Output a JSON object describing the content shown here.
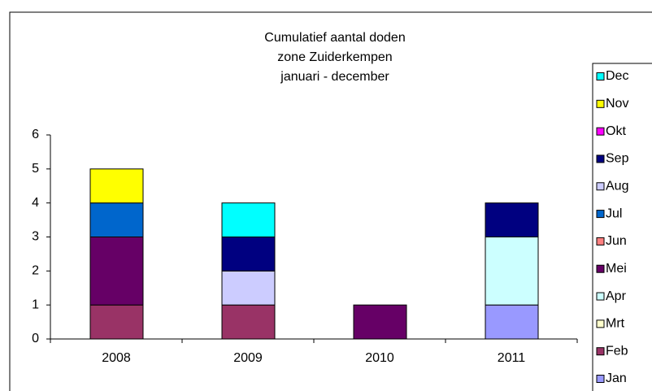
{
  "chart_data": {
    "type": "bar",
    "stacked": true,
    "title": [
      "Cumulatief aantal doden",
      "zone Zuiderkempen",
      "januari - december"
    ],
    "categories": [
      "2008",
      "2009",
      "2010",
      "2011"
    ],
    "series": [
      {
        "name": "Jan",
        "color": "#9999ff",
        "values": [
          0,
          0,
          0,
          1
        ]
      },
      {
        "name": "Feb",
        "color": "#993366",
        "values": [
          1,
          1,
          0,
          0
        ]
      },
      {
        "name": "Mrt",
        "color": "#ffffcc",
        "values": [
          0,
          0,
          0,
          0
        ]
      },
      {
        "name": "Apr",
        "color": "#ccffff",
        "values": [
          0,
          0,
          0,
          2
        ]
      },
      {
        "name": "Mei",
        "color": "#660066",
        "values": [
          2,
          0,
          1,
          0
        ]
      },
      {
        "name": "Jun",
        "color": "#ff8080",
        "values": [
          0,
          0,
          0,
          0
        ]
      },
      {
        "name": "Jul",
        "color": "#0066cc",
        "values": [
          1,
          0,
          0,
          0
        ]
      },
      {
        "name": "Aug",
        "color": "#ccccff",
        "values": [
          0,
          1,
          0,
          0
        ]
      },
      {
        "name": "Sep",
        "color": "#000080",
        "values": [
          0,
          1,
          0,
          1
        ]
      },
      {
        "name": "Okt",
        "color": "#ff00ff",
        "values": [
          0,
          0,
          0,
          0
        ]
      },
      {
        "name": "Nov",
        "color": "#ffff00",
        "values": [
          1,
          0,
          0,
          0
        ]
      },
      {
        "name": "Dec",
        "color": "#00ffff",
        "values": [
          0,
          1,
          0,
          0
        ]
      }
    ],
    "ylim": [
      0,
      6
    ],
    "yticks": [
      0,
      1,
      2,
      3,
      4,
      5,
      6
    ],
    "grid": false,
    "legend": "right"
  }
}
